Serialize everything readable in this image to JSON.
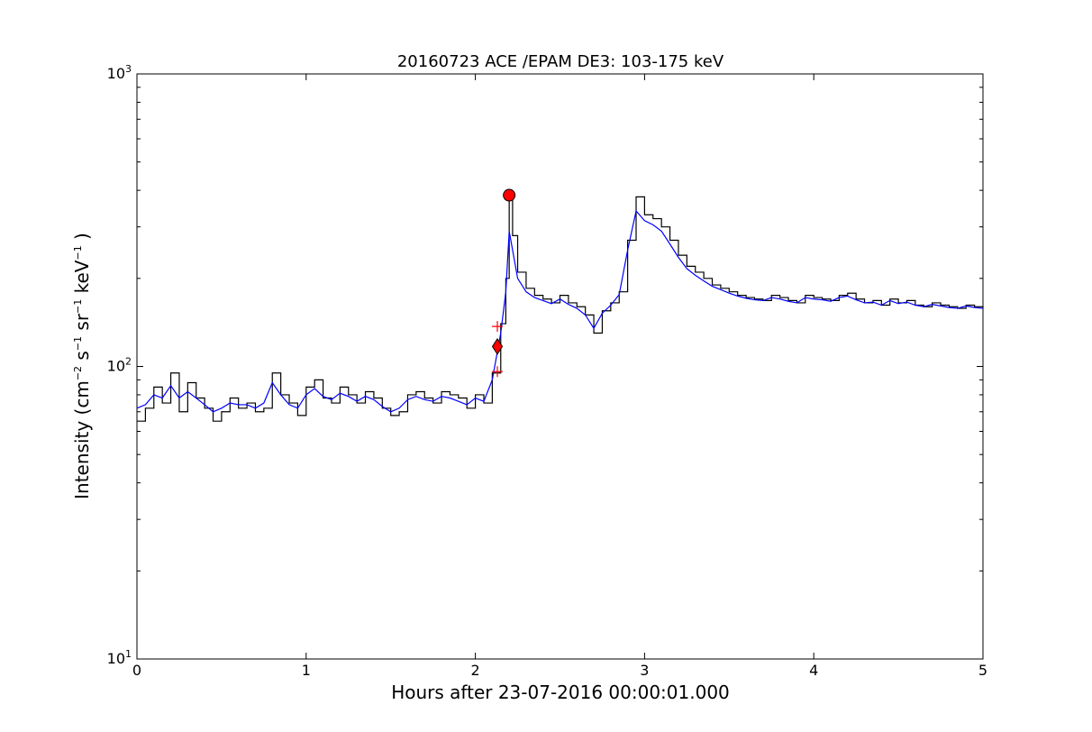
{
  "chart_data": {
    "type": "line",
    "title": "20160723 ACE /EPAM DE3: 103-175 keV",
    "xlabel": "Hours after 23-07-2016 00:00:01.000",
    "ylabel": {
      "prefix": "Intensity (cm",
      "sup1": "−2",
      "mid1": " s",
      "sup2": "−1",
      "mid2": " sr",
      "sup3": "−1",
      "mid3": " keV",
      "sup4": "−1",
      "suffix": " )"
    },
    "xlim": [
      0,
      5
    ],
    "ylim": [
      10,
      1000
    ],
    "yscale": "log",
    "grid": false,
    "xticks": [
      {
        "value": 0,
        "label": "0"
      },
      {
        "value": 1,
        "label": "1"
      },
      {
        "value": 2,
        "label": "2"
      },
      {
        "value": 3,
        "label": "3"
      },
      {
        "value": 4,
        "label": "4"
      },
      {
        "value": 5,
        "label": "5"
      }
    ],
    "yticks": [
      {
        "value": 10,
        "base": "10",
        "exp": "1"
      },
      {
        "value": 100,
        "base": "10",
        "exp": "2"
      },
      {
        "value": 1000,
        "base": "10",
        "exp": "3"
      }
    ],
    "series": [
      {
        "style": "steps",
        "color": "#000000",
        "points": [
          [
            0.0,
            65
          ],
          [
            0.05,
            72
          ],
          [
            0.1,
            85
          ],
          [
            0.15,
            75
          ],
          [
            0.2,
            95
          ],
          [
            0.25,
            70
          ],
          [
            0.3,
            88
          ],
          [
            0.35,
            78
          ],
          [
            0.4,
            72
          ],
          [
            0.45,
            65
          ],
          [
            0.5,
            70
          ],
          [
            0.55,
            78
          ],
          [
            0.6,
            72
          ],
          [
            0.65,
            75
          ],
          [
            0.7,
            70
          ],
          [
            0.75,
            72
          ],
          [
            0.8,
            95
          ],
          [
            0.85,
            80
          ],
          [
            0.9,
            75
          ],
          [
            0.95,
            68
          ],
          [
            1.0,
            85
          ],
          [
            1.05,
            90
          ],
          [
            1.1,
            78
          ],
          [
            1.15,
            75
          ],
          [
            1.2,
            85
          ],
          [
            1.25,
            80
          ],
          [
            1.3,
            75
          ],
          [
            1.35,
            82
          ],
          [
            1.4,
            78
          ],
          [
            1.45,
            72
          ],
          [
            1.5,
            68
          ],
          [
            1.55,
            70
          ],
          [
            1.6,
            80
          ],
          [
            1.65,
            82
          ],
          [
            1.7,
            78
          ],
          [
            1.75,
            75
          ],
          [
            1.8,
            82
          ],
          [
            1.85,
            80
          ],
          [
            1.9,
            78
          ],
          [
            1.95,
            72
          ],
          [
            2.0,
            80
          ],
          [
            2.05,
            75
          ],
          [
            2.1,
            95
          ],
          [
            2.15,
            140
          ],
          [
            2.18,
            200
          ],
          [
            2.2,
            380
          ],
          [
            2.22,
            280
          ],
          [
            2.25,
            210
          ],
          [
            2.3,
            185
          ],
          [
            2.35,
            175
          ],
          [
            2.4,
            170
          ],
          [
            2.45,
            165
          ],
          [
            2.5,
            175
          ],
          [
            2.55,
            165
          ],
          [
            2.6,
            160
          ],
          [
            2.65,
            150
          ],
          [
            2.7,
            130
          ],
          [
            2.75,
            155
          ],
          [
            2.8,
            165
          ],
          [
            2.85,
            180
          ],
          [
            2.9,
            270
          ],
          [
            2.95,
            380
          ],
          [
            3.0,
            330
          ],
          [
            3.05,
            320
          ],
          [
            3.1,
            300
          ],
          [
            3.15,
            270
          ],
          [
            3.2,
            240
          ],
          [
            3.25,
            220
          ],
          [
            3.3,
            210
          ],
          [
            3.35,
            200
          ],
          [
            3.4,
            190
          ],
          [
            3.45,
            185
          ],
          [
            3.5,
            180
          ],
          [
            3.55,
            175
          ],
          [
            3.6,
            172
          ],
          [
            3.65,
            170
          ],
          [
            3.7,
            168
          ],
          [
            3.75,
            175
          ],
          [
            3.8,
            172
          ],
          [
            3.85,
            168
          ],
          [
            3.9,
            165
          ],
          [
            3.95,
            175
          ],
          [
            4.0,
            172
          ],
          [
            4.05,
            170
          ],
          [
            4.1,
            168
          ],
          [
            4.15,
            175
          ],
          [
            4.2,
            178
          ],
          [
            4.25,
            170
          ],
          [
            4.3,
            165
          ],
          [
            4.35,
            168
          ],
          [
            4.4,
            162
          ],
          [
            4.45,
            170
          ],
          [
            4.5,
            165
          ],
          [
            4.55,
            168
          ],
          [
            4.6,
            162
          ],
          [
            4.65,
            160
          ],
          [
            4.7,
            165
          ],
          [
            4.75,
            162
          ],
          [
            4.8,
            160
          ],
          [
            4.85,
            158
          ],
          [
            4.9,
            162
          ],
          [
            4.95,
            160
          ],
          [
            5.0,
            158
          ]
        ]
      },
      {
        "style": "line",
        "color": "#0000ff",
        "points": [
          [
            0.0,
            72
          ],
          [
            0.05,
            74
          ],
          [
            0.1,
            80
          ],
          [
            0.15,
            78
          ],
          [
            0.2,
            86
          ],
          [
            0.25,
            78
          ],
          [
            0.3,
            82
          ],
          [
            0.35,
            78
          ],
          [
            0.4,
            74
          ],
          [
            0.45,
            70
          ],
          [
            0.5,
            72
          ],
          [
            0.55,
            75
          ],
          [
            0.6,
            74
          ],
          [
            0.65,
            74
          ],
          [
            0.7,
            72
          ],
          [
            0.75,
            75
          ],
          [
            0.8,
            88
          ],
          [
            0.85,
            80
          ],
          [
            0.9,
            74
          ],
          [
            0.95,
            72
          ],
          [
            1.0,
            80
          ],
          [
            1.05,
            84
          ],
          [
            1.1,
            79
          ],
          [
            1.15,
            77
          ],
          [
            1.2,
            81
          ],
          [
            1.25,
            79
          ],
          [
            1.3,
            76
          ],
          [
            1.35,
            79
          ],
          [
            1.4,
            77
          ],
          [
            1.45,
            73
          ],
          [
            1.5,
            70
          ],
          [
            1.55,
            72
          ],
          [
            1.6,
            77
          ],
          [
            1.65,
            79
          ],
          [
            1.7,
            77
          ],
          [
            1.75,
            76
          ],
          [
            1.8,
            79
          ],
          [
            1.85,
            78
          ],
          [
            1.9,
            76
          ],
          [
            1.95,
            74
          ],
          [
            2.0,
            78
          ],
          [
            2.05,
            76
          ],
          [
            2.1,
            90
          ],
          [
            2.15,
            130
          ],
          [
            2.18,
            180
          ],
          [
            2.2,
            290
          ],
          [
            2.22,
            250
          ],
          [
            2.25,
            200
          ],
          [
            2.3,
            180
          ],
          [
            2.35,
            172
          ],
          [
            2.4,
            168
          ],
          [
            2.45,
            164
          ],
          [
            2.5,
            170
          ],
          [
            2.55,
            163
          ],
          [
            2.6,
            158
          ],
          [
            2.65,
            150
          ],
          [
            2.7,
            135
          ],
          [
            2.75,
            152
          ],
          [
            2.8,
            162
          ],
          [
            2.85,
            176
          ],
          [
            2.9,
            250
          ],
          [
            2.95,
            340
          ],
          [
            3.0,
            315
          ],
          [
            3.05,
            305
          ],
          [
            3.1,
            290
          ],
          [
            3.15,
            262
          ],
          [
            3.2,
            236
          ],
          [
            3.25,
            216
          ],
          [
            3.3,
            205
          ],
          [
            3.35,
            196
          ],
          [
            3.4,
            188
          ],
          [
            3.45,
            183
          ],
          [
            3.5,
            178
          ],
          [
            3.55,
            174
          ],
          [
            3.6,
            171
          ],
          [
            3.65,
            169
          ],
          [
            3.7,
            168
          ],
          [
            3.75,
            172
          ],
          [
            3.8,
            170
          ],
          [
            3.85,
            167
          ],
          [
            3.9,
            165
          ],
          [
            3.95,
            172
          ],
          [
            4.0,
            170
          ],
          [
            4.05,
            169
          ],
          [
            4.1,
            167
          ],
          [
            4.15,
            172
          ],
          [
            4.2,
            174
          ],
          [
            4.25,
            169
          ],
          [
            4.3,
            165
          ],
          [
            4.35,
            166
          ],
          [
            4.4,
            162
          ],
          [
            4.45,
            168
          ],
          [
            4.5,
            164
          ],
          [
            4.55,
            166
          ],
          [
            4.6,
            162
          ],
          [
            4.65,
            160
          ],
          [
            4.7,
            163
          ],
          [
            4.75,
            161
          ],
          [
            4.8,
            159
          ],
          [
            4.85,
            158
          ],
          [
            4.9,
            161
          ],
          [
            4.95,
            159
          ],
          [
            5.0,
            158
          ]
        ]
      }
    ],
    "markers": [
      {
        "shape": "circle",
        "x": 2.2,
        "y": 385,
        "color": "#ff0000"
      },
      {
        "shape": "diamond",
        "x": 2.13,
        "y": 117,
        "color": "#ff0000"
      },
      {
        "shape": "plus",
        "x": 2.13,
        "y": 137,
        "color": "#ff0000"
      },
      {
        "shape": "plus",
        "x": 2.13,
        "y": 96,
        "color": "#ff0000"
      }
    ]
  }
}
